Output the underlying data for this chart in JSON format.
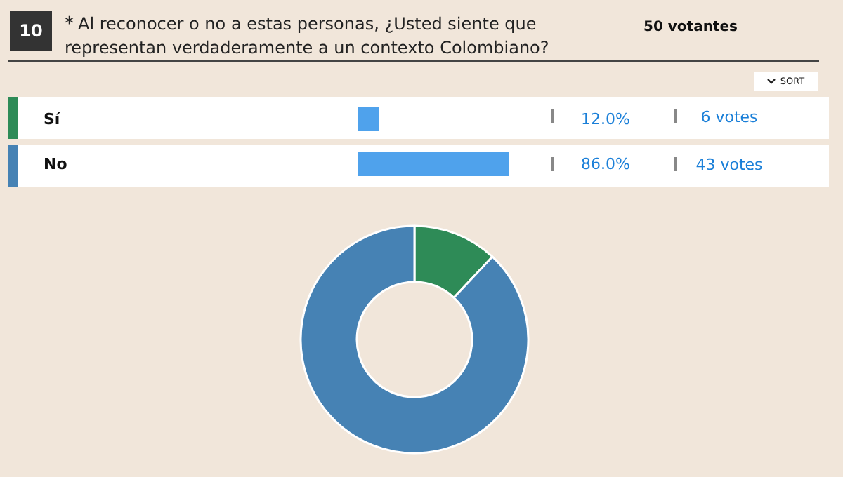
{
  "chart_data": [
    {
      "type": "bar",
      "orientation": "horizontal",
      "title": "Al reconocer o no a estas personas, ¿Usted siente que representan verdaderamente a un contexto Colombiano?",
      "categories": [
        "Sí",
        "No"
      ],
      "values": [
        12.0,
        86.0
      ],
      "color": "#4fa2ec",
      "value_labels": [
        "12.0%",
        "86.0%"
      ],
      "annotations": [
        "10",
        "*",
        "50 votantes",
        "SORT",
        "6 votes",
        "43 votes"
      ]
    },
    {
      "type": "donut",
      "categories": [
        null,
        null
      ],
      "values": [
        12,
        88
      ],
      "colors": [
        "#2e8b57",
        "#4682b4"
      ]
    }
  ]
}
